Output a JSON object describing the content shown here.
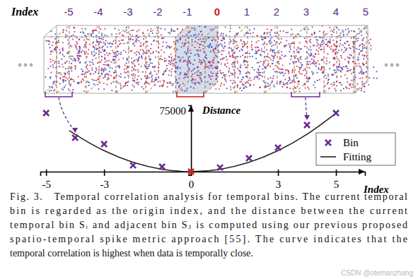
{
  "figure": {
    "index_title": "Index",
    "indices": [
      -5,
      -4,
      -3,
      -2,
      -1,
      0,
      1,
      2,
      3,
      4,
      5
    ]
  },
  "chart_data": {
    "type": "scatter",
    "y_label": "Distance",
    "x_label": "Index",
    "xlim": [
      -5.2,
      6
    ],
    "xticks": [
      -5,
      -3,
      0,
      3,
      5
    ],
    "ylim": [
      -4000,
      82000
    ],
    "yticks": [
      75000
    ],
    "legend": "right",
    "series": [
      {
        "name": "Bin",
        "type": "scatter",
        "marker": "x",
        "color": "#6a2c91",
        "colors": [
          "#6a2c91",
          "#6a2c91",
          "#6a2c91",
          "#6a2c91",
          "#6a2c91",
          "#e0201b",
          "#6a2c91",
          "#6a2c91",
          "#6a2c91",
          "#6a2c91",
          "#6a2c91"
        ],
        "x": [
          -5,
          -4,
          -3,
          -2,
          -1,
          0,
          1,
          2,
          3,
          4,
          5
        ],
        "values": [
          72400,
          41900,
          34000,
          7800,
          6100,
          0,
          5200,
          16600,
          29700,
          57600,
          72400
        ]
      },
      {
        "name": "Fitting",
        "type": "line",
        "line_style": "solid",
        "color": "#222222",
        "x": [
          -4.2,
          -4,
          -3,
          -2,
          -1,
          0,
          1,
          2,
          3,
          4,
          5
        ],
        "values": [
          50800,
          46100,
          25900,
          11500,
          2900,
          0,
          2900,
          11500,
          25900,
          46100,
          72000
        ]
      }
    ]
  },
  "caption": {
    "lines": [
      "Fig. 3.   Temporal correlation analysis for temporal bins. The current temporal",
      "bin is regarded as the origin index, and the distance between the current",
      "temporal bin Sᵢ and adjacent bin Sⱼ is computed using our previous proposed",
      "spatio-temporal spike metric approach [55]. The curve indicates that the",
      "temporal correlation is highest when data is temporally close."
    ]
  },
  "watermark": "CSDN @otemanzhang"
}
